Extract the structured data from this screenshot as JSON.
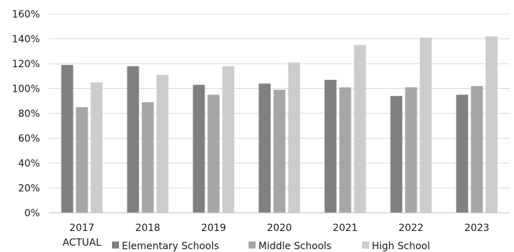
{
  "chart_data": {
    "type": "bar",
    "categories": [
      "2017",
      "2018",
      "2019",
      "2020",
      "2021",
      "2022",
      "2023"
    ],
    "category_sublabels": [
      "ACTUAL",
      "",
      "",
      "",
      "",
      "",
      ""
    ],
    "series": [
      {
        "name": "Elementary Schools",
        "values": [
          119,
          118,
          103,
          104,
          107,
          94,
          95
        ],
        "color": "#808080"
      },
      {
        "name": "Middle Schools",
        "values": [
          85,
          89,
          95,
          99,
          101,
          101,
          102
        ],
        "color": "#a6a6a6"
      },
      {
        "name": "High School",
        "values": [
          105,
          111,
          118,
          121,
          135,
          141,
          142
        ],
        "color": "#cccccc"
      }
    ],
    "ylim": [
      0,
      160
    ],
    "yticks": [
      "0%",
      "20%",
      "40%",
      "60%",
      "80%",
      "100%",
      "120%",
      "140%",
      "160%"
    ],
    "grid": true,
    "legend": "bottom",
    "title": "",
    "xlabel": "",
    "ylabel": ""
  }
}
